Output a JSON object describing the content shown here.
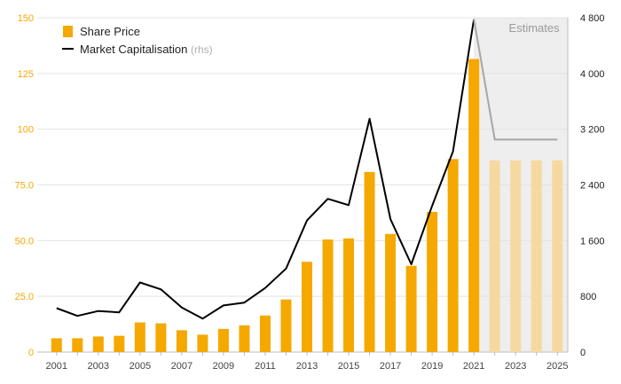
{
  "chart_data": {
    "type": "bar",
    "categories": [
      "2001",
      "2002",
      "2003",
      "2004",
      "2005",
      "2006",
      "2007",
      "2008",
      "2009",
      "2010",
      "2011",
      "2012",
      "2013",
      "2014",
      "2015",
      "2016",
      "2017",
      "2018",
      "2019",
      "2020",
      "2021",
      "2022",
      "2023",
      "2024",
      "2025"
    ],
    "x_tick_labels": [
      "2001",
      "2003",
      "2005",
      "2007",
      "2009",
      "2011",
      "2013",
      "2015",
      "2017",
      "2019",
      "2021",
      "2023",
      "2025"
    ],
    "series": [
      {
        "name": "Share Price",
        "axis": "left",
        "type": "bar",
        "values": [
          6.2,
          6.2,
          7.0,
          7.3,
          13.3,
          12.9,
          9.8,
          7.8,
          10.4,
          12.0,
          16.4,
          23.6,
          40.5,
          50.5,
          51.0,
          80.8,
          53.0,
          38.7,
          62.9,
          86.6,
          131.5,
          86.0,
          86.0,
          86.0,
          86.0
        ],
        "estimate_from": "2022",
        "color": "#f5a800",
        "estimate_color": "#f5d9a0"
      },
      {
        "name": "Market Capitalisation",
        "name_note": "(rhs)",
        "axis": "right",
        "type": "line",
        "values": [
          630,
          520,
          590,
          570,
          1000,
          900,
          640,
          480,
          670,
          710,
          920,
          1200,
          1890,
          2200,
          2110,
          3350,
          1910,
          1260,
          2100,
          2880,
          4780,
          3050,
          3050,
          3050,
          3050
        ],
        "estimate_from": "2021",
        "color": "#000000",
        "estimate_color": "#a6a6a6"
      }
    ],
    "y_left": {
      "ylim": [
        0,
        150
      ],
      "ticks": [
        "0",
        "25.0",
        "50.0",
        "75.0",
        "100",
        "125",
        "150"
      ],
      "tick_values": [
        0,
        25,
        50,
        75,
        100,
        125,
        150
      ],
      "color": "#f5a800"
    },
    "y_right": {
      "ylim": [
        0,
        4800
      ],
      "ticks": [
        "0",
        "800",
        "1 600",
        "2 400",
        "3 200",
        "4 000",
        "4 800"
      ],
      "tick_values": [
        0,
        800,
        1600,
        2400,
        3200,
        4000,
        4800
      ]
    },
    "estimates_label": "Estimates",
    "estimates_from": "2022",
    "estimates_shade": "#eeeeee",
    "grid": true,
    "legend_placement": "top-left"
  }
}
